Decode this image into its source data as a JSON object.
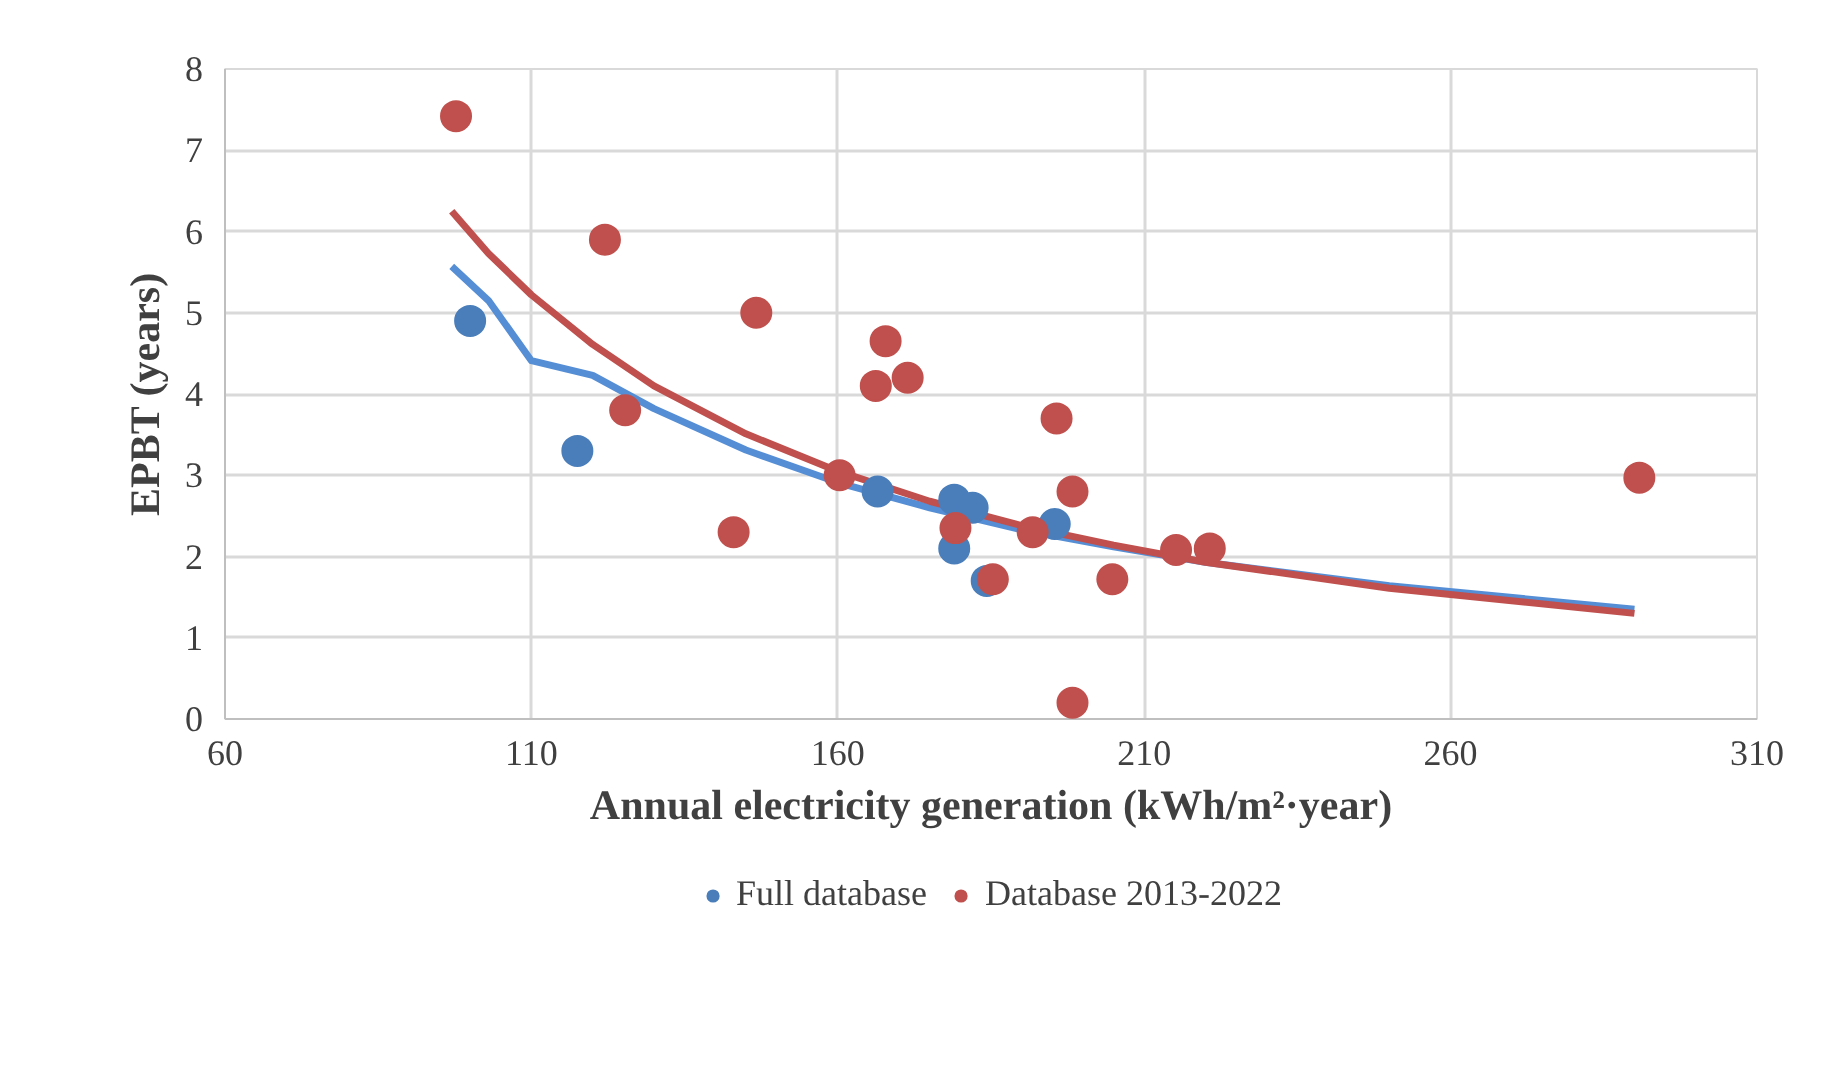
{
  "chart_data": {
    "type": "scatter",
    "xlabel": "Annual electricity generation (kWh/m²·year)",
    "ylabel": "EPBT (years)",
    "xlim": [
      60,
      310
    ],
    "xticks": [
      60,
      110,
      160,
      210,
      260,
      310
    ],
    "ylim": [
      0,
      8
    ],
    "yticks": [
      0,
      1,
      2,
      3,
      4,
      5,
      6,
      7,
      8
    ],
    "grid": true,
    "legend": "bottom",
    "series": [
      {
        "name": "Full database",
        "color": "#4a7ebb",
        "marker": "circle",
        "x": [
          100,
          117.5,
          160,
          166.5,
          179,
          182,
          179,
          184.3,
          195.4
        ],
        "values": [
          4.9,
          3.3,
          null,
          2.8,
          2.7,
          2.6,
          2.1,
          1.7,
          2.4
        ]
      },
      {
        "name": "Database 2013-2022",
        "color": "#c0504d",
        "marker": "circle",
        "x": [
          97.7,
          122,
          125.3,
          146.7,
          143,
          160.3,
          167.8,
          166.2,
          171.4,
          179.2,
          185.3,
          195.7,
          198.3,
          191.8,
          198.3,
          204.8,
          215.2,
          220.7,
          290.8
        ],
        "values": [
          7.42,
          5.9,
          3.8,
          5.0,
          2.3,
          3.0,
          4.65,
          4.1,
          4.2,
          2.35,
          1.72,
          3.7,
          2.8,
          2.3,
          0.2,
          1.72,
          2.08,
          2.1,
          2.97
        ]
      },
      {
        "type": "line",
        "color": "#558ed5",
        "marker": "none",
        "x": [
          97,
          103,
          110,
          120,
          130,
          145,
          160,
          175,
          190,
          205,
          220,
          250,
          290
        ],
        "values": [
          5.57,
          5.15,
          4.41,
          4.23,
          3.82,
          3.31,
          2.91,
          2.6,
          2.33,
          2.12,
          1.93,
          1.64,
          1.35
        ]
      },
      {
        "type": "line",
        "color": "#c0504d",
        "marker": "none",
        "x": [
          97,
          103,
          110,
          120,
          130,
          145,
          160,
          175,
          190,
          205,
          220,
          250,
          290
        ],
        "values": [
          6.25,
          5.73,
          5.22,
          4.61,
          4.1,
          3.51,
          3.05,
          2.68,
          2.38,
          2.14,
          1.93,
          1.61,
          1.3
        ]
      }
    ]
  }
}
